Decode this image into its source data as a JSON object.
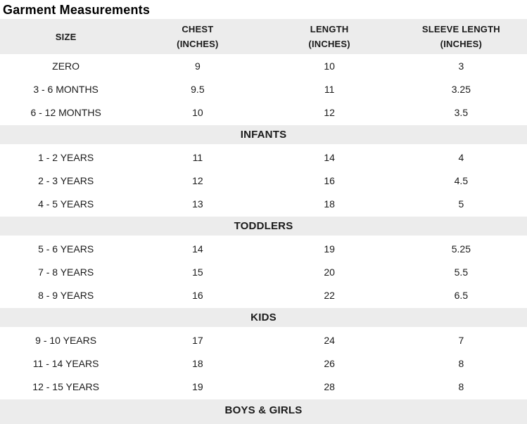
{
  "title": "Garment Measurements",
  "chart_data": {
    "type": "table",
    "title": "Garment Measurements",
    "columns": [
      {
        "line1": "SIZE",
        "line2": ""
      },
      {
        "line1": "CHEST",
        "line2": "(INCHES)"
      },
      {
        "line1": "LENGTH",
        "line2": "(INCHES)"
      },
      {
        "line1": "SLEEVE LENGTH",
        "line2": "(INCHES)"
      }
    ],
    "groups": [
      {
        "section_label": "INFANTS",
        "rows": [
          {
            "size": "ZERO",
            "chest": "9",
            "length": "10",
            "sleeve": "3"
          },
          {
            "size": "3 - 6 MONTHS",
            "chest": "9.5",
            "length": "11",
            "sleeve": "3.25"
          },
          {
            "size": "6 - 12 MONTHS",
            "chest": "10",
            "length": "12",
            "sleeve": "3.5"
          }
        ]
      },
      {
        "section_label": "TODDLERS",
        "rows": [
          {
            "size": "1 - 2 YEARS",
            "chest": "11",
            "length": "14",
            "sleeve": "4"
          },
          {
            "size": "2 - 3 YEARS",
            "chest": "12",
            "length": "16",
            "sleeve": "4.5"
          },
          {
            "size": "4 - 5 YEARS",
            "chest": "13",
            "length": "18",
            "sleeve": "5"
          }
        ]
      },
      {
        "section_label": "KIDS",
        "rows": [
          {
            "size": "5 - 6 YEARS",
            "chest": "14",
            "length": "19",
            "sleeve": "5.25"
          },
          {
            "size": "7 - 8 YEARS",
            "chest": "15",
            "length": "20",
            "sleeve": "5.5"
          },
          {
            "size": "8 - 9 YEARS",
            "chest": "16",
            "length": "22",
            "sleeve": "6.5"
          }
        ]
      },
      {
        "section_label": "BOYS & GIRLS",
        "rows": [
          {
            "size": "9 - 10 YEARS",
            "chest": "17",
            "length": "24",
            "sleeve": "7"
          },
          {
            "size": "11 - 14 YEARS",
            "chest": "18",
            "length": "26",
            "sleeve": "8"
          },
          {
            "size": "12 - 15 YEARS",
            "chest": "19",
            "length": "28",
            "sleeve": "8"
          }
        ]
      }
    ]
  },
  "colors": {
    "header_bg": "#ececec",
    "section_bg": "#ececec",
    "row_bg": "#ffffff",
    "text": "#1a1a1a",
    "title_color": "#000000"
  }
}
